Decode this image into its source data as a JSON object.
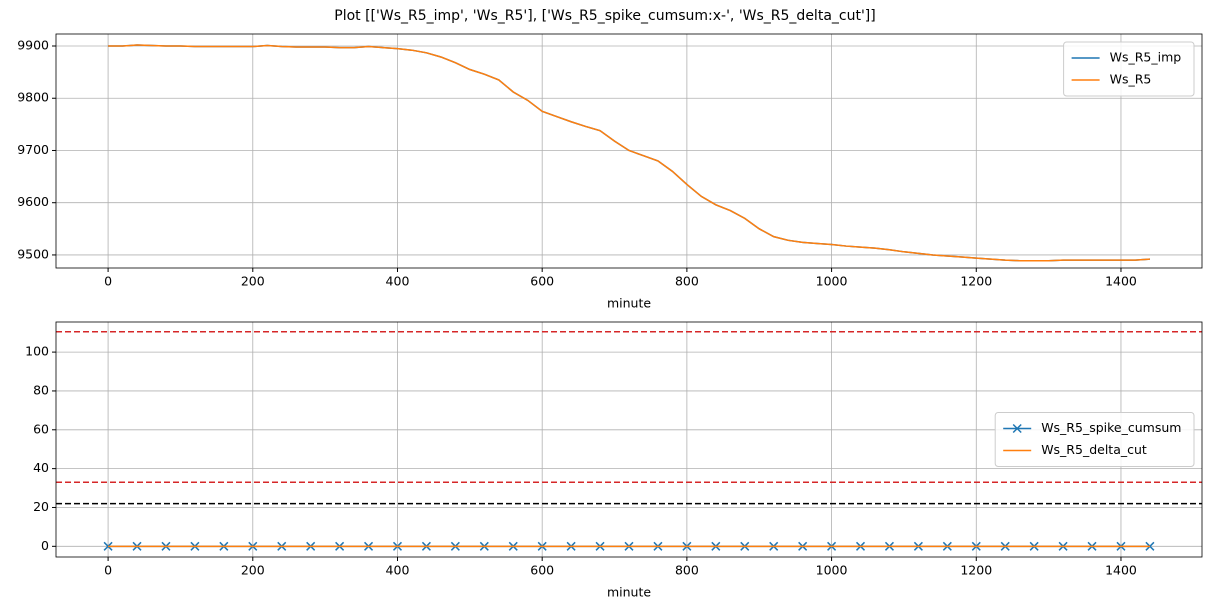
{
  "title": "Plot [['Ws_R5_imp', 'Ws_R5'], ['Ws_R5_spike_cumsum:x-', 'Ws_R5_delta_cut']]",
  "chart_data": [
    {
      "type": "line",
      "xlabel": "minute",
      "x": [
        0,
        20,
        40,
        60,
        80,
        100,
        120,
        140,
        160,
        180,
        200,
        220,
        240,
        260,
        280,
        300,
        320,
        340,
        360,
        380,
        400,
        420,
        440,
        460,
        480,
        500,
        520,
        540,
        560,
        580,
        600,
        620,
        640,
        660,
        680,
        700,
        720,
        740,
        760,
        780,
        800,
        820,
        840,
        860,
        880,
        900,
        920,
        940,
        960,
        980,
        1000,
        1020,
        1040,
        1060,
        1080,
        1100,
        1120,
        1140,
        1160,
        1180,
        1200,
        1220,
        1240,
        1260,
        1280,
        1300,
        1320,
        1340,
        1360,
        1380,
        1400,
        1420,
        1440
      ],
      "series": [
        {
          "name": "Ws_R5_imp",
          "color": "#1f77b4",
          "values": [
            9900,
            9900,
            9902,
            9901,
            9900,
            9900,
            9899,
            9899,
            9899,
            9899,
            9899,
            9901,
            9899,
            9898,
            9898,
            9898,
            9897,
            9897,
            9899,
            9897,
            9895,
            9892,
            9887,
            9879,
            9868,
            9855,
            9846,
            9835,
            9812,
            9796,
            9775,
            9765,
            9755,
            9746,
            9738,
            9718,
            9700,
            9690,
            9680,
            9660,
            9635,
            9612,
            9596,
            9585,
            9570,
            9550,
            9535,
            9528,
            9524,
            9522,
            9520,
            9517,
            9515,
            9513,
            9510,
            9506,
            9503,
            9500,
            9498,
            9496,
            9494,
            9492,
            9490,
            9489,
            9489,
            9489,
            9490,
            9490,
            9490,
            9490,
            9490,
            9490,
            9492
          ]
        },
        {
          "name": "Ws_R5",
          "color": "#ff7f0e",
          "values": [
            9900,
            9900,
            9902,
            9901,
            9900,
            9900,
            9899,
            9899,
            9899,
            9899,
            9899,
            9901,
            9899,
            9898,
            9898,
            9898,
            9897,
            9897,
            9899,
            9897,
            9895,
            9892,
            9887,
            9879,
            9868,
            9855,
            9846,
            9835,
            9812,
            9796,
            9775,
            9765,
            9755,
            9746,
            9738,
            9718,
            9700,
            9690,
            9680,
            9660,
            9635,
            9612,
            9596,
            9585,
            9570,
            9550,
            9535,
            9528,
            9524,
            9522,
            9520,
            9517,
            9515,
            9513,
            9510,
            9506,
            9503,
            9500,
            9498,
            9496,
            9494,
            9492,
            9490,
            9489,
            9489,
            9489,
            9490,
            9490,
            9490,
            9490,
            9490,
            9490,
            9492
          ]
        }
      ],
      "xlim": [
        -72,
        1512
      ],
      "xticks": [
        0,
        200,
        400,
        600,
        800,
        1000,
        1200,
        1400
      ],
      "ylim": [
        9475,
        9923
      ],
      "yticks": [
        9500,
        9600,
        9700,
        9800,
        9900
      ],
      "grid": true,
      "legend": "upper right"
    },
    {
      "type": "line",
      "xlabel": "minute",
      "x": [
        0,
        40,
        80,
        120,
        160,
        200,
        240,
        280,
        320,
        360,
        400,
        440,
        480,
        520,
        560,
        600,
        640,
        680,
        720,
        760,
        800,
        840,
        880,
        920,
        960,
        1000,
        1040,
        1080,
        1120,
        1160,
        1200,
        1240,
        1280,
        1320,
        1360,
        1400,
        1440
      ],
      "series": [
        {
          "name": "Ws_R5_spike_cumsum",
          "color": "#1f77b4",
          "marker": "x",
          "values": [
            0,
            0,
            0,
            0,
            0,
            0,
            0,
            0,
            0,
            0,
            0,
            0,
            0,
            0,
            0,
            0,
            0,
            0,
            0,
            0,
            0,
            0,
            0,
            0,
            0,
            0,
            0,
            0,
            0,
            0,
            0,
            0,
            0,
            0,
            0,
            0,
            0
          ]
        },
        {
          "name": "Ws_R5_delta_cut",
          "color": "#ff7f0e",
          "values": [
            0,
            0,
            0,
            0,
            0,
            0,
            0,
            0,
            0,
            0,
            0,
            0,
            0,
            0,
            0,
            0,
            0,
            0,
            0,
            0,
            0,
            0,
            0,
            0,
            0,
            0,
            0,
            0,
            0,
            0,
            0,
            0,
            0,
            0,
            0,
            0,
            0
          ]
        }
      ],
      "hlines": [
        {
          "value": 110.5,
          "color": "#d62728"
        },
        {
          "value": 33,
          "color": "#d62728"
        },
        {
          "value": 22,
          "color": "#000000"
        }
      ],
      "xlim": [
        -72,
        1512
      ],
      "xticks": [
        0,
        200,
        400,
        600,
        800,
        1000,
        1200,
        1400
      ],
      "ylim": [
        -5.5,
        115.5
      ],
      "yticks": [
        0,
        20,
        40,
        60,
        80,
        100
      ],
      "grid": true,
      "legend": "center right"
    }
  ]
}
